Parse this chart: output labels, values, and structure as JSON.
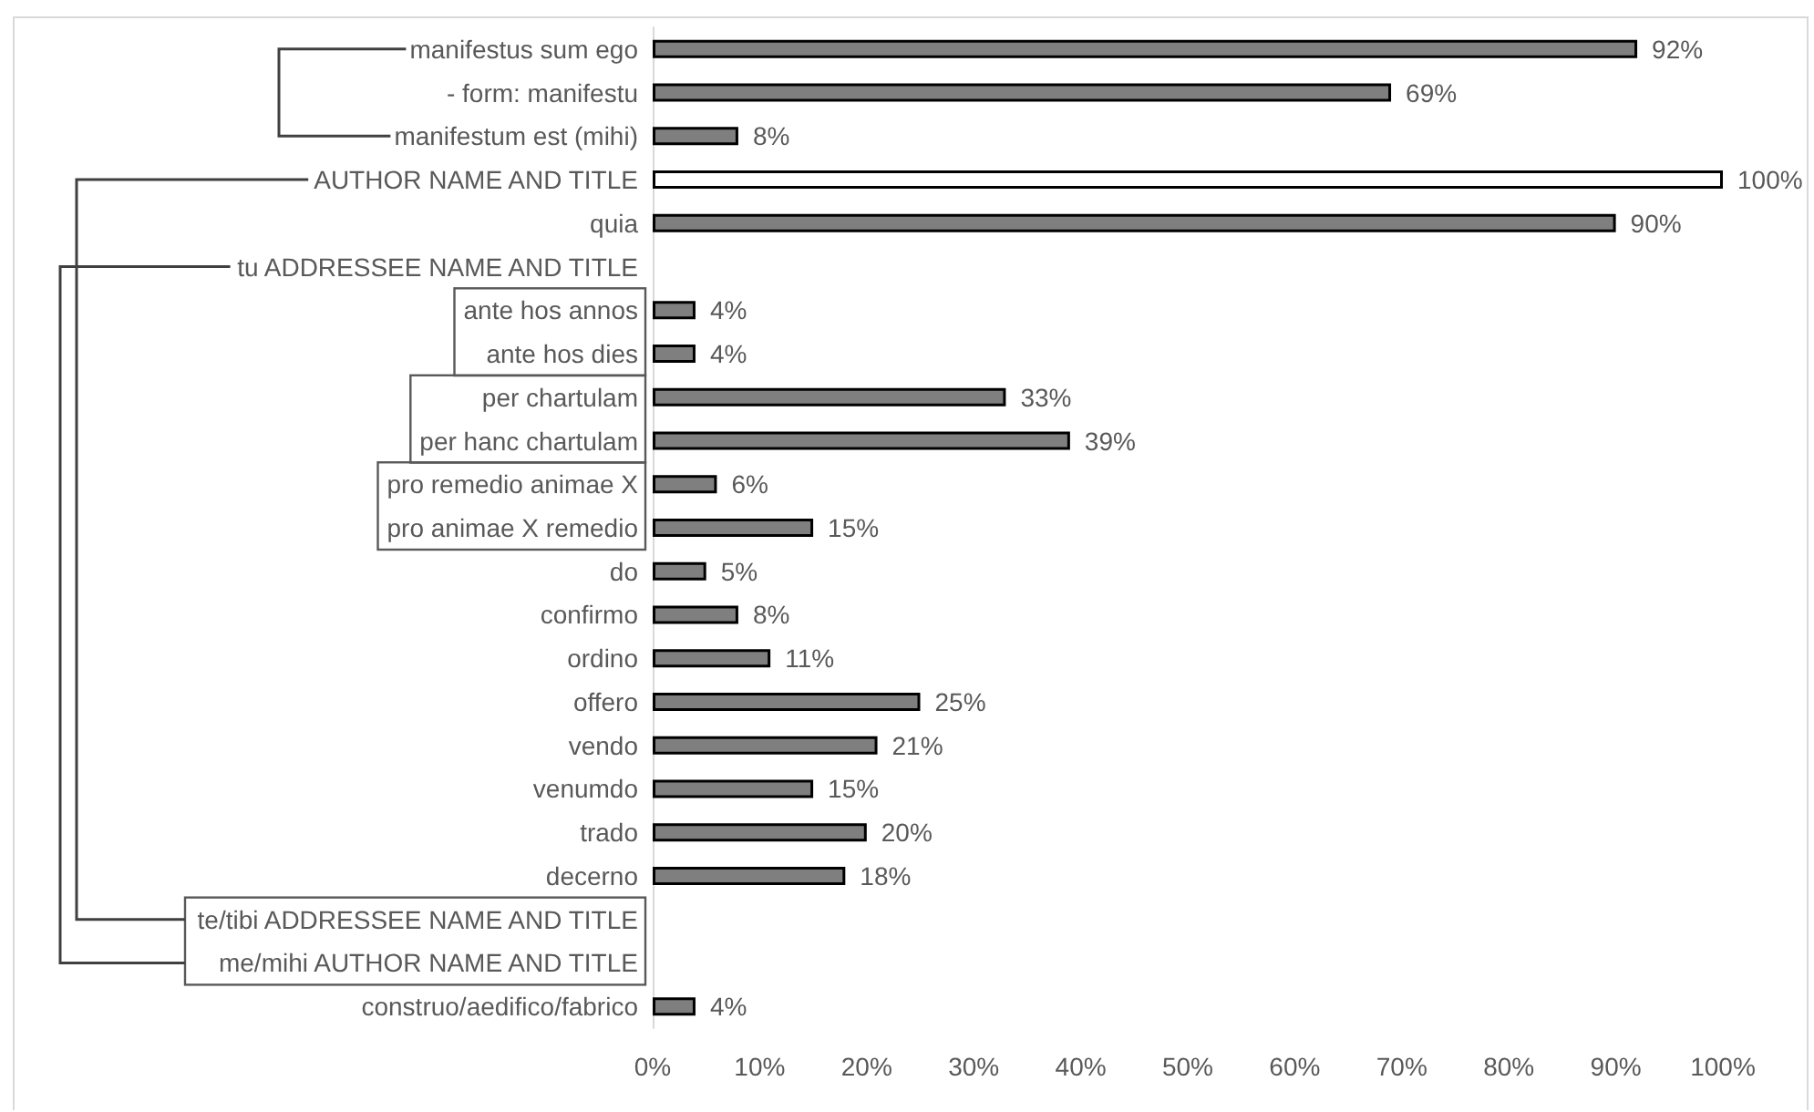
{
  "chart_data": {
    "type": "bar",
    "orientation": "horizontal",
    "categories": [
      "manifestus sum ego",
      "- form: manifestu",
      "manifestum est (mihi)",
      "AUTHOR NAME AND TITLE",
      "quia",
      "tu ADDRESSEE NAME AND TITLE",
      "ante hos annos",
      "ante hos dies",
      "per chartulam",
      "per hanc chartulam",
      "pro remedio animae X",
      "pro animae X remedio",
      "do",
      "confirmo",
      "ordino",
      "offero",
      "vendo",
      "venumdo",
      "trado",
      "decerno",
      "te/tibi ADDRESSEE NAME AND TITLE",
      "me/mihi AUTHOR NAME AND TITLE",
      "construo/aedifico/fabrico"
    ],
    "values": [
      92,
      69,
      8,
      100,
      90,
      null,
      4,
      4,
      33,
      39,
      6,
      15,
      5,
      8,
      11,
      25,
      21,
      15,
      20,
      18,
      null,
      null,
      4
    ],
    "value_labels": [
      "92%",
      "69%",
      "8%",
      "100%",
      "90%",
      null,
      "4%",
      "4%",
      "33%",
      "39%",
      "6%",
      "15%",
      "5%",
      "8%",
      "11%",
      "25%",
      "21%",
      "15%",
      "20%",
      "18%",
      null,
      null,
      "4%"
    ],
    "colors": [
      "#7f7f7f",
      "#7f7f7f",
      "#7f7f7f",
      "#ffffff",
      "#7f7f7f",
      null,
      "#7f7f7f",
      "#7f7f7f",
      "#7f7f7f",
      "#7f7f7f",
      "#7f7f7f",
      "#7f7f7f",
      "#7f7f7f",
      "#7f7f7f",
      "#7f7f7f",
      "#7f7f7f",
      "#7f7f7f",
      "#7f7f7f",
      "#7f7f7f",
      "#7f7f7f",
      null,
      null,
      "#7f7f7f"
    ],
    "xlim": [
      0,
      100
    ],
    "xticks": [
      {
        "value": 0,
        "label": "0%"
      },
      {
        "value": 10,
        "label": "10%"
      },
      {
        "value": 20,
        "label": "20%"
      },
      {
        "value": 30,
        "label": "30%"
      },
      {
        "value": 40,
        "label": "40%"
      },
      {
        "value": 50,
        "label": "50%"
      },
      {
        "value": 60,
        "label": "60%"
      },
      {
        "value": 70,
        "label": "70%"
      },
      {
        "value": 80,
        "label": "80%"
      },
      {
        "value": 90,
        "label": "90%"
      },
      {
        "value": 100,
        "label": "100%"
      }
    ]
  }
}
